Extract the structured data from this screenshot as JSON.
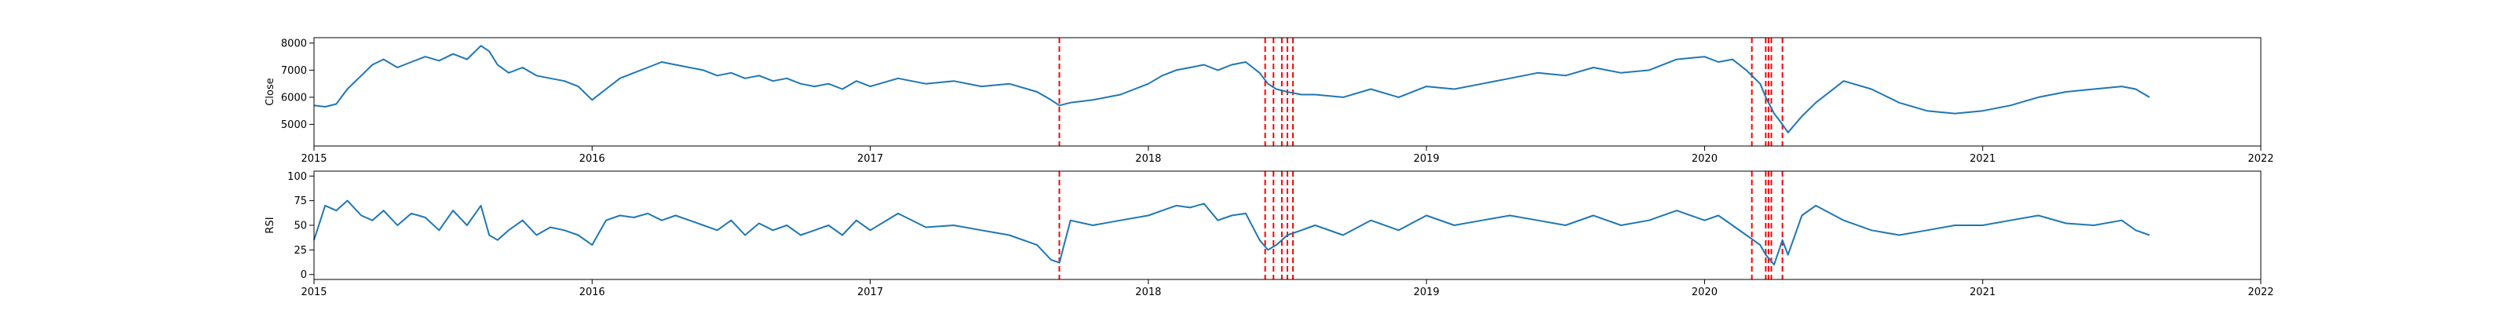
{
  "colors": {
    "series": "#1f77b4",
    "event_line": "#ff0000",
    "background": "#ffffff"
  },
  "chart_data": [
    {
      "type": "line",
      "title": "",
      "xlabel": "",
      "ylabel": "Close",
      "xlim": [
        2015,
        2022
      ],
      "ylim": [
        4200,
        8200
      ],
      "xticks": [
        2015,
        2016,
        2017,
        2018,
        2019,
        2020,
        2021,
        2022
      ],
      "yticks": [
        5000,
        6000,
        7000,
        8000
      ],
      "grid": false,
      "series": [
        {
          "x": [
            2015.0,
            2015.04,
            2015.08,
            2015.12,
            2015.17,
            2015.21,
            2015.25,
            2015.3,
            2015.35,
            2015.4,
            2015.45,
            2015.5,
            2015.55,
            2015.6,
            2015.63,
            2015.66,
            2015.7,
            2015.75,
            2015.8,
            2015.85,
            2015.9,
            2015.95,
            2016.0,
            2016.05,
            2016.1,
            2016.15,
            2016.2,
            2016.25,
            2016.3,
            2016.35,
            2016.4,
            2016.45,
            2016.5,
            2016.55,
            2016.6,
            2016.65,
            2016.7,
            2016.75,
            2016.8,
            2016.85,
            2016.9,
            2016.95,
            2017.0,
            2017.1,
            2017.2,
            2017.3,
            2017.4,
            2017.5,
            2017.6,
            2017.65,
            2017.68,
            2017.72,
            2017.8,
            2017.9,
            2018.0,
            2018.05,
            2018.1,
            2018.15,
            2018.2,
            2018.25,
            2018.3,
            2018.35,
            2018.4,
            2018.43,
            2018.46,
            2018.5,
            2018.55,
            2018.6,
            2018.7,
            2018.8,
            2018.9,
            2019.0,
            2019.1,
            2019.2,
            2019.3,
            2019.4,
            2019.5,
            2019.6,
            2019.7,
            2019.8,
            2019.9,
            2020.0,
            2020.05,
            2020.1,
            2020.15,
            2020.2,
            2020.22,
            2020.25,
            2020.28,
            2020.3,
            2020.35,
            2020.4,
            2020.5,
            2020.6,
            2020.7,
            2020.8,
            2020.9,
            2021.0,
            2021.1,
            2021.2,
            2021.3,
            2021.4,
            2021.5,
            2021.55,
            2021.6
          ],
          "y": [
            5700,
            5650,
            5750,
            6300,
            6800,
            7200,
            7400,
            7100,
            7300,
            7500,
            7350,
            7600,
            7400,
            7900,
            7700,
            7200,
            6900,
            7100,
            6800,
            6700,
            6600,
            6400,
            5900,
            6300,
            6700,
            6900,
            7100,
            7300,
            7200,
            7100,
            7000,
            6800,
            6900,
            6700,
            6800,
            6600,
            6700,
            6500,
            6400,
            6500,
            6300,
            6600,
            6400,
            6700,
            6500,
            6600,
            6400,
            6500,
            6200,
            5900,
            5700,
            5800,
            5900,
            6100,
            6500,
            6800,
            7000,
            7100,
            7200,
            7000,
            7200,
            7300,
            6900,
            6500,
            6300,
            6200,
            6100,
            6100,
            6000,
            6300,
            6000,
            6400,
            6300,
            6500,
            6700,
            6900,
            6800,
            7100,
            6900,
            7000,
            7400,
            7500,
            7300,
            7400,
            7000,
            6500,
            6000,
            5400,
            5000,
            4700,
            5300,
            5800,
            6600,
            6300,
            5800,
            5500,
            5400,
            5500,
            5700,
            6000,
            6200,
            6300,
            6400,
            6300,
            6000
          ]
        }
      ]
    },
    {
      "type": "line",
      "title": "",
      "xlabel": "",
      "ylabel": "RSI",
      "xlim": [
        2015,
        2022
      ],
      "ylim": [
        -5,
        105
      ],
      "xticks": [
        2015,
        2016,
        2017,
        2018,
        2019,
        2020,
        2021,
        2022
      ],
      "yticks": [
        0,
        25,
        50,
        75,
        100
      ],
      "grid": false,
      "series": [
        {
          "x": [
            2015.0,
            2015.04,
            2015.08,
            2015.12,
            2015.17,
            2015.21,
            2015.25,
            2015.3,
            2015.35,
            2015.4,
            2015.45,
            2015.5,
            2015.55,
            2015.6,
            2015.63,
            2015.66,
            2015.7,
            2015.75,
            2015.8,
            2015.85,
            2015.9,
            2015.95,
            2016.0,
            2016.05,
            2016.1,
            2016.15,
            2016.2,
            2016.25,
            2016.3,
            2016.35,
            2016.4,
            2016.45,
            2016.5,
            2016.55,
            2016.6,
            2016.65,
            2016.7,
            2016.75,
            2016.8,
            2016.85,
            2016.9,
            2016.95,
            2017.0,
            2017.1,
            2017.2,
            2017.3,
            2017.4,
            2017.5,
            2017.6,
            2017.65,
            2017.68,
            2017.72,
            2017.8,
            2017.9,
            2018.0,
            2018.05,
            2018.1,
            2018.15,
            2018.2,
            2018.25,
            2018.3,
            2018.35,
            2018.4,
            2018.43,
            2018.46,
            2018.5,
            2018.55,
            2018.6,
            2018.7,
            2018.8,
            2018.9,
            2019.0,
            2019.1,
            2019.2,
            2019.3,
            2019.4,
            2019.5,
            2019.6,
            2019.7,
            2019.8,
            2019.9,
            2020.0,
            2020.05,
            2020.1,
            2020.15,
            2020.2,
            2020.22,
            2020.25,
            2020.28,
            2020.3,
            2020.35,
            2020.4,
            2020.5,
            2020.6,
            2020.7,
            2020.8,
            2020.9,
            2021.0,
            2021.1,
            2021.2,
            2021.3,
            2021.4,
            2021.5,
            2021.55,
            2021.6
          ],
          "y": [
            35,
            70,
            65,
            75,
            60,
            55,
            65,
            50,
            62,
            58,
            45,
            65,
            50,
            70,
            40,
            35,
            45,
            55,
            40,
            48,
            45,
            40,
            30,
            55,
            60,
            58,
            62,
            55,
            60,
            55,
            50,
            45,
            55,
            40,
            52,
            45,
            50,
            40,
            45,
            50,
            40,
            55,
            45,
            62,
            48,
            50,
            45,
            40,
            30,
            15,
            12,
            55,
            50,
            55,
            60,
            65,
            70,
            68,
            72,
            55,
            60,
            62,
            35,
            25,
            30,
            40,
            45,
            50,
            40,
            55,
            45,
            60,
            50,
            55,
            60,
            55,
            50,
            60,
            50,
            55,
            65,
            55,
            60,
            50,
            40,
            30,
            20,
            10,
            35,
            20,
            60,
            70,
            55,
            45,
            40,
            45,
            50,
            50,
            55,
            60,
            52,
            50,
            55,
            45,
            40
          ]
        }
      ]
    }
  ],
  "event_lines": {
    "x": [
      2017.68,
      2018.42,
      2018.45,
      2018.48,
      2018.5,
      2018.52,
      2020.17,
      2020.22,
      2020.23,
      2020.24,
      2020.28
    ]
  }
}
